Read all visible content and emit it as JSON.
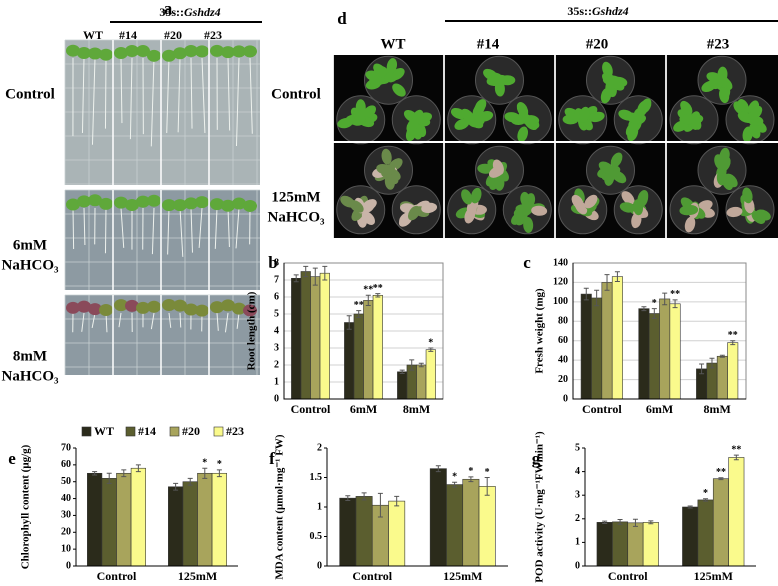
{
  "photo_panels": {
    "a": {
      "label": "a",
      "header_prefix": "35s::",
      "header_gene": "Gshdz4",
      "columns": [
        "WT",
        "#14",
        "#20",
        "#23"
      ],
      "rows": [
        [
          "Control"
        ],
        [
          "6mM",
          "NaHCO₃"
        ],
        [
          "8mM",
          "NaHCO₃"
        ]
      ]
    },
    "d": {
      "label": "d",
      "header_prefix": "35s::",
      "header_gene": "Gshdz4",
      "columns": [
        "WT",
        "#14",
        "#20",
        "#23"
      ],
      "rows": [
        [
          "Control"
        ],
        [
          "125mM",
          "NaHCO₃"
        ]
      ]
    }
  },
  "chart_data": [
    {
      "type": "bar",
      "label": "b",
      "y_label": "Root length (cm)",
      "categories": [
        "Control",
        "6mM",
        "8mM"
      ],
      "ylim": [
        0,
        8
      ],
      "yticks": [
        0,
        1,
        2,
        3,
        4,
        5,
        6,
        7,
        8
      ],
      "grid": true,
      "series": [
        {
          "name": "WT",
          "color": "#2b2b1b",
          "values": [
            7.1,
            4.5,
            1.6
          ],
          "errors": [
            0.2,
            0.4,
            0.1
          ],
          "significance": [
            null,
            null,
            null
          ]
        },
        {
          "name": "#14",
          "color": "#5b5e2f",
          "values": [
            7.5,
            5.0,
            2.0
          ],
          "errors": [
            0.3,
            0.2,
            0.3
          ],
          "significance": [
            null,
            "**",
            null
          ]
        },
        {
          "name": "#20",
          "color": "#a8a45c",
          "values": [
            7.2,
            5.8,
            2.0
          ],
          "errors": [
            0.5,
            0.3,
            0.1
          ],
          "significance": [
            null,
            "**",
            null
          ]
        },
        {
          "name": "#23",
          "color": "#fafa8c",
          "values": [
            7.4,
            6.1,
            2.9
          ],
          "errors": [
            0.4,
            0.1,
            0.1
          ],
          "significance": [
            null,
            "**",
            "*"
          ]
        }
      ]
    },
    {
      "type": "bar",
      "label": "c",
      "y_label": "Fresh weight (mg)",
      "categories": [
        "Control",
        "6mM",
        "8mM"
      ],
      "ylim": [
        0,
        140
      ],
      "yticks": [
        0,
        20,
        40,
        60,
        80,
        100,
        120,
        140
      ],
      "grid": true,
      "series": [
        {
          "name": "WT",
          "color": "#2b2b1b",
          "values": [
            108,
            93,
            31
          ],
          "errors": [
            6,
            2,
            5
          ],
          "significance": [
            null,
            null,
            null
          ]
        },
        {
          "name": "#14",
          "color": "#5b5e2f",
          "values": [
            104,
            88,
            37
          ],
          "errors": [
            8,
            5,
            5
          ],
          "significance": [
            null,
            "*",
            null
          ]
        },
        {
          "name": "#20",
          "color": "#a8a45c",
          "values": [
            120,
            103,
            44
          ],
          "errors": [
            8,
            6,
            1
          ],
          "significance": [
            null,
            null,
            null
          ]
        },
        {
          "name": "#23",
          "color": "#fafa8c",
          "values": [
            126,
            98,
            58
          ],
          "errors": [
            5,
            4,
            2
          ],
          "significance": [
            null,
            "**",
            "**"
          ]
        }
      ]
    },
    {
      "type": "bar",
      "label": "e",
      "y_label": "Chlorophyll content (μg/g)",
      "categories": [
        "Control",
        "125mM"
      ],
      "ylim": [
        0,
        70
      ],
      "yticks": [
        0,
        10,
        20,
        30,
        40,
        50,
        60,
        70
      ],
      "grid": false,
      "legend": "top",
      "series": [
        {
          "name": "WT",
          "color": "#2b2b1b",
          "values": [
            55,
            47
          ],
          "errors": [
            1,
            2
          ],
          "significance": [
            null,
            null
          ]
        },
        {
          "name": "#14",
          "color": "#5b5e2f",
          "values": [
            52,
            50
          ],
          "errors": [
            3,
            2
          ],
          "significance": [
            null,
            null
          ]
        },
        {
          "name": "#20",
          "color": "#a8a45c",
          "values": [
            55,
            55
          ],
          "errors": [
            2,
            3
          ],
          "significance": [
            null,
            "*"
          ]
        },
        {
          "name": "#23",
          "color": "#fafa8c",
          "values": [
            58,
            55
          ],
          "errors": [
            2,
            2
          ],
          "significance": [
            null,
            "*"
          ]
        }
      ]
    },
    {
      "type": "bar",
      "label": "f",
      "y_label": "MDA content (μmol·mg⁻¹ FW)",
      "categories": [
        "Control",
        "125mM"
      ],
      "ylim": [
        0,
        2
      ],
      "yticks": [
        0,
        0.5,
        1,
        1.5,
        2
      ],
      "grid": false,
      "series": [
        {
          "name": "WT",
          "color": "#2b2b1b",
          "values": [
            1.15,
            1.65
          ],
          "errors": [
            0.04,
            0.05
          ],
          "significance": [
            null,
            null
          ]
        },
        {
          "name": "#14",
          "color": "#5b5e2f",
          "values": [
            1.18,
            1.38
          ],
          "errors": [
            0.06,
            0.04
          ],
          "significance": [
            null,
            "*"
          ]
        },
        {
          "name": "#20",
          "color": "#a8a45c",
          "values": [
            1.03,
            1.47
          ],
          "errors": [
            0.2,
            0.04
          ],
          "significance": [
            null,
            "*"
          ]
        },
        {
          "name": "#23",
          "color": "#fafa8c",
          "values": [
            1.1,
            1.35
          ],
          "errors": [
            0.08,
            0.15
          ],
          "significance": [
            null,
            "*"
          ]
        }
      ]
    },
    {
      "type": "bar",
      "label": "g",
      "y_label": "POD activity (U·mg⁻¹FWmin⁻¹)",
      "categories": [
        "Control",
        "125mM"
      ],
      "ylim": [
        0,
        5
      ],
      "yticks": [
        0,
        1,
        2,
        3,
        4,
        5
      ],
      "grid": false,
      "series": [
        {
          "name": "WT",
          "color": "#2b2b1b",
          "values": [
            1.85,
            2.5
          ],
          "errors": [
            0.05,
            0.04
          ],
          "significance": [
            null,
            null
          ]
        },
        {
          "name": "#14",
          "color": "#5b5e2f",
          "values": [
            1.87,
            2.8
          ],
          "errors": [
            0.1,
            0.05
          ],
          "significance": [
            null,
            "*"
          ]
        },
        {
          "name": "#20",
          "color": "#a8a45c",
          "values": [
            1.83,
            3.7
          ],
          "errors": [
            0.15,
            0.04
          ],
          "significance": [
            null,
            "**"
          ]
        },
        {
          "name": "#23",
          "color": "#fafa8c",
          "values": [
            1.85,
            4.6
          ],
          "errors": [
            0.06,
            0.1
          ],
          "significance": [
            null,
            "**"
          ]
        }
      ]
    }
  ]
}
